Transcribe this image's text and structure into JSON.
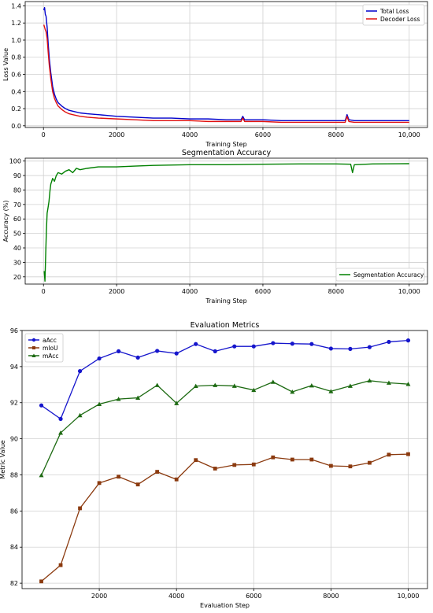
{
  "chart_data": [
    {
      "type": "line",
      "title": "",
      "xlabel": "Training Step",
      "ylabel": "Loss Value",
      "xlim": [
        -500,
        10500
      ],
      "ylim": [
        -0.02,
        1.45
      ],
      "xticks": [
        0,
        2000,
        4000,
        6000,
        8000,
        10000
      ],
      "xtick_labels": [
        "0",
        "2000",
        "4000",
        "6000",
        "8000",
        "10,000"
      ],
      "yticks": [
        0.0,
        0.2,
        0.4,
        0.6,
        0.8,
        1.0,
        1.2,
        1.4
      ],
      "ytick_labels": [
        "0.0",
        "0.2",
        "0.4",
        "0.6",
        "0.8",
        "1.0",
        "1.2",
        "1.4"
      ],
      "grid": true,
      "legend": "top-right",
      "series": [
        {
          "name": "Total Loss",
          "color": "#0000cc",
          "x": [
            10,
            30,
            50,
            70,
            100,
            130,
            160,
            200,
            250,
            300,
            350,
            400,
            500,
            600,
            700,
            800,
            1000,
            1200,
            1500,
            2000,
            2500,
            3000,
            3500,
            4000,
            4500,
            5000,
            5400,
            5450,
            5500,
            6000,
            6500,
            7000,
            7500,
            8000,
            8250,
            8300,
            8350,
            8500,
            9000,
            9500,
            10000
          ],
          "y": [
            1.35,
            1.38,
            1.3,
            1.28,
            1.15,
            0.95,
            0.78,
            0.62,
            0.46,
            0.37,
            0.31,
            0.27,
            0.23,
            0.2,
            0.18,
            0.17,
            0.15,
            0.14,
            0.13,
            0.11,
            0.1,
            0.09,
            0.09,
            0.08,
            0.08,
            0.07,
            0.07,
            0.11,
            0.07,
            0.07,
            0.06,
            0.06,
            0.06,
            0.06,
            0.06,
            0.13,
            0.07,
            0.06,
            0.06,
            0.06,
            0.06
          ]
        },
        {
          "name": "Decoder Loss",
          "color": "#e01010",
          "x": [
            10,
            30,
            50,
            70,
            100,
            130,
            160,
            200,
            250,
            300,
            350,
            400,
            500,
            600,
            700,
            800,
            1000,
            1200,
            1500,
            2000,
            2500,
            3000,
            3500,
            4000,
            4500,
            5000,
            5400,
            5450,
            5500,
            6000,
            6500,
            7000,
            7500,
            8000,
            8250,
            8300,
            8350,
            8500,
            9000,
            9500,
            10000
          ],
          "y": [
            1.18,
            1.15,
            1.12,
            1.1,
            1.02,
            0.85,
            0.7,
            0.55,
            0.4,
            0.32,
            0.27,
            0.23,
            0.19,
            0.16,
            0.14,
            0.13,
            0.11,
            0.1,
            0.09,
            0.08,
            0.07,
            0.06,
            0.06,
            0.06,
            0.05,
            0.05,
            0.05,
            0.09,
            0.05,
            0.05,
            0.04,
            0.04,
            0.04,
            0.04,
            0.04,
            0.11,
            0.05,
            0.04,
            0.04,
            0.04,
            0.04
          ]
        }
      ]
    },
    {
      "type": "line",
      "title": "Segmentation Accuracy",
      "xlabel": "Training Step",
      "ylabel": "Accuracy (%)",
      "xlim": [
        -500,
        10500
      ],
      "ylim": [
        15,
        102
      ],
      "xticks": [
        0,
        2000,
        4000,
        6000,
        8000,
        10000
      ],
      "xtick_labels": [
        "0",
        "2000",
        "4000",
        "6000",
        "8000",
        "10,000"
      ],
      "yticks": [
        20,
        30,
        40,
        50,
        60,
        70,
        80,
        90,
        100
      ],
      "ytick_labels": [
        "20",
        "30",
        "40",
        "50",
        "60",
        "70",
        "80",
        "90",
        "100"
      ],
      "grid": true,
      "legend": "bottom-right",
      "series": [
        {
          "name": "Segmentation Accuracy",
          "color": "#008000",
          "x": [
            20,
            40,
            60,
            80,
            100,
            120,
            150,
            180,
            200,
            250,
            300,
            350,
            400,
            500,
            600,
            700,
            800,
            900,
            1000,
            1200,
            1500,
            2000,
            2500,
            3000,
            4000,
            5000,
            6000,
            7000,
            8000,
            8400,
            8450,
            8500,
            9000,
            10000
          ],
          "y": [
            24,
            17,
            35,
            52,
            64,
            67,
            72,
            80,
            84,
            88,
            86,
            90,
            92,
            91,
            93,
            94,
            92,
            95,
            94,
            95,
            96,
            96,
            96.5,
            97,
            97.5,
            97.5,
            97.8,
            98,
            98,
            97.8,
            92,
            97.5,
            98,
            98.2
          ]
        }
      ]
    },
    {
      "type": "line",
      "title": "Evaluation Metrics",
      "xlabel": "Evaluation Step",
      "ylabel": "Metric Value",
      "xlim": [
        0,
        10500
      ],
      "ylim": [
        81.7,
        96
      ],
      "xticks": [
        2000,
        4000,
        6000,
        8000,
        10000
      ],
      "xtick_labels": [
        "2000",
        "4000",
        "6000",
        "8000",
        "10,000"
      ],
      "yticks": [
        82,
        84,
        86,
        88,
        90,
        92,
        94,
        96
      ],
      "ytick_labels": [
        "82",
        "84",
        "86",
        "88",
        "90",
        "92",
        "94",
        "96"
      ],
      "grid": true,
      "legend": "top-left",
      "x": [
        500,
        1000,
        1500,
        2000,
        2500,
        3000,
        3500,
        4000,
        4500,
        5000,
        5500,
        6000,
        6500,
        7000,
        7500,
        8000,
        8500,
        9000,
        9500,
        10000
      ],
      "series": [
        {
          "name": "aAcc",
          "color": "#1515cc",
          "marker": "circle",
          "values": [
            91.85,
            91.1,
            93.75,
            94.45,
            94.85,
            94.5,
            94.87,
            94.73,
            95.25,
            94.85,
            95.12,
            95.12,
            95.3,
            95.27,
            95.25,
            95.0,
            94.98,
            95.08,
            95.37,
            95.45
          ]
        },
        {
          "name": "mIoU",
          "color": "#8b3a0f",
          "marker": "square",
          "values": [
            82.1,
            83.0,
            86.15,
            87.55,
            87.9,
            87.47,
            88.17,
            87.75,
            88.82,
            88.35,
            88.55,
            88.58,
            88.97,
            88.85,
            88.85,
            88.5,
            88.47,
            88.67,
            89.12,
            89.15
          ]
        },
        {
          "name": "mAcc",
          "color": "#1d6a12",
          "marker": "triangle",
          "values": [
            87.98,
            90.33,
            91.3,
            91.92,
            92.2,
            92.27,
            92.97,
            91.97,
            92.92,
            92.97,
            92.93,
            92.7,
            93.15,
            92.6,
            92.95,
            92.63,
            92.93,
            93.22,
            93.1,
            93.03
          ]
        }
      ]
    }
  ]
}
